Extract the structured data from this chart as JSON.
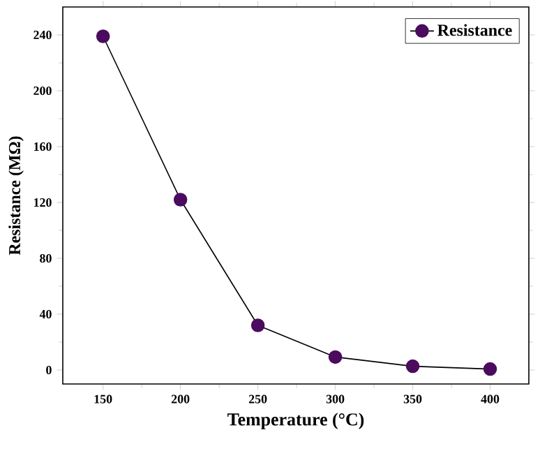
{
  "chart_data": {
    "type": "line",
    "xlabel": "Temperature (°C)",
    "ylabel": "Resistance (MΩ)",
    "x": [
      150,
      200,
      250,
      300,
      350,
      400
    ],
    "series": [
      {
        "name": "Resistance",
        "color": "#4b0b5e",
        "values": [
          239,
          122,
          32,
          9.3,
          2.7,
          0.7
        ]
      }
    ],
    "xlim": [
      124,
      425
    ],
    "ylim": [
      -10,
      260
    ],
    "xticks": [
      150,
      200,
      250,
      300,
      350,
      400
    ],
    "yticks": [
      0,
      40,
      80,
      120,
      160,
      200,
      240
    ],
    "grid": false,
    "legend": "top right",
    "marker": "circle",
    "line_style": "solid"
  }
}
